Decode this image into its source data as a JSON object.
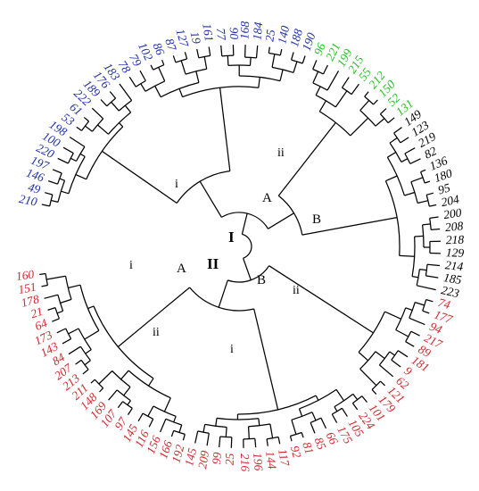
{
  "colors": {
    "red": "#d0282e",
    "blue": "#1f2fa8",
    "green": "#23c21f",
    "black": "#000000"
  },
  "clade_labels": {
    "major1": "I",
    "major2": "II",
    "a1": "A",
    "b1": "B",
    "a2": "A",
    "b2": "B",
    "i_a1": "i",
    "ii_a1": "ii",
    "i_a2": "i",
    "ii_a2": "ii",
    "i_b2": "i",
    "ii_b2": "ii"
  },
  "leaves": [
    {
      "label": "210",
      "color": "blue"
    },
    {
      "label": "49",
      "color": "blue"
    },
    {
      "label": "146",
      "color": "blue"
    },
    {
      "label": "197",
      "color": "blue"
    },
    {
      "label": "220",
      "color": "blue"
    },
    {
      "label": "100",
      "color": "blue"
    },
    {
      "label": "198",
      "color": "blue"
    },
    {
      "label": "53",
      "color": "blue"
    },
    {
      "label": "61",
      "color": "blue"
    },
    {
      "label": "222",
      "color": "blue"
    },
    {
      "label": "189",
      "color": "blue"
    },
    {
      "label": "176",
      "color": "blue"
    },
    {
      "label": "183",
      "color": "blue"
    },
    {
      "label": "78",
      "color": "blue"
    },
    {
      "label": "79",
      "color": "blue"
    },
    {
      "label": "102",
      "color": "blue"
    },
    {
      "label": "86",
      "color": "blue"
    },
    {
      "label": "87",
      "color": "blue"
    },
    {
      "label": "127",
      "color": "blue"
    },
    {
      "label": "19",
      "color": "blue"
    },
    {
      "label": "161",
      "color": "blue"
    },
    {
      "label": "77",
      "color": "blue"
    },
    {
      "label": "90",
      "color": "blue"
    },
    {
      "label": "168",
      "color": "blue"
    },
    {
      "label": "184",
      "color": "blue"
    },
    {
      "label": "25",
      "color": "blue"
    },
    {
      "label": "140",
      "color": "blue"
    },
    {
      "label": "188",
      "color": "blue"
    },
    {
      "label": "190",
      "color": "blue"
    },
    {
      "label": "96",
      "color": "green"
    },
    {
      "label": "221",
      "color": "green"
    },
    {
      "label": "199",
      "color": "green"
    },
    {
      "label": "215",
      "color": "green"
    },
    {
      "label": "55",
      "color": "green"
    },
    {
      "label": "212",
      "color": "green"
    },
    {
      "label": "150",
      "color": "green"
    },
    {
      "label": "52",
      "color": "green"
    },
    {
      "label": "131",
      "color": "green"
    },
    {
      "label": "149",
      "color": "black"
    },
    {
      "label": "123",
      "color": "black"
    },
    {
      "label": "219",
      "color": "black"
    },
    {
      "label": "82",
      "color": "black"
    },
    {
      "label": "136",
      "color": "black"
    },
    {
      "label": "180",
      "color": "black"
    },
    {
      "label": "95",
      "color": "black"
    },
    {
      "label": "204",
      "color": "black"
    },
    {
      "label": "200",
      "color": "black"
    },
    {
      "label": "208",
      "color": "black"
    },
    {
      "label": "218",
      "color": "black"
    },
    {
      "label": "129",
      "color": "black"
    },
    {
      "label": "214",
      "color": "black"
    },
    {
      "label": "185",
      "color": "black"
    },
    {
      "label": "223",
      "color": "black"
    },
    {
      "label": "74",
      "color": "red"
    },
    {
      "label": "177",
      "color": "red"
    },
    {
      "label": "94",
      "color": "red"
    },
    {
      "label": "217",
      "color": "red"
    },
    {
      "label": "89",
      "color": "red"
    },
    {
      "label": "181",
      "color": "red"
    },
    {
      "label": "9",
      "color": "red"
    },
    {
      "label": "62",
      "color": "red"
    },
    {
      "label": "121",
      "color": "red"
    },
    {
      "label": "179",
      "color": "red"
    },
    {
      "label": "101",
      "color": "red"
    },
    {
      "label": "224",
      "color": "red"
    },
    {
      "label": "105",
      "color": "red"
    },
    {
      "label": "175",
      "color": "red"
    },
    {
      "label": "66",
      "color": "red"
    },
    {
      "label": "85",
      "color": "red"
    },
    {
      "label": "81",
      "color": "red"
    },
    {
      "label": "92",
      "color": "red"
    },
    {
      "label": "117",
      "color": "red"
    },
    {
      "label": "144",
      "color": "red"
    },
    {
      "label": "196",
      "color": "red"
    },
    {
      "label": "216",
      "color": "red"
    },
    {
      "label": "25",
      "color": "red"
    },
    {
      "label": "99",
      "color": "red"
    },
    {
      "label": "209",
      "color": "red"
    },
    {
      "label": "145",
      "color": "red"
    },
    {
      "label": "192",
      "color": "red"
    },
    {
      "label": "166",
      "color": "red"
    },
    {
      "label": "156",
      "color": "red"
    },
    {
      "label": "116",
      "color": "red"
    },
    {
      "label": "145",
      "color": "red"
    },
    {
      "label": "97",
      "color": "red"
    },
    {
      "label": "107",
      "color": "red"
    },
    {
      "label": "169",
      "color": "red"
    },
    {
      "label": "148",
      "color": "red"
    },
    {
      "label": "211",
      "color": "red"
    },
    {
      "label": "213",
      "color": "red"
    },
    {
      "label": "207",
      "color": "red"
    },
    {
      "label": "84",
      "color": "red"
    },
    {
      "label": "143",
      "color": "red"
    },
    {
      "label": "173",
      "color": "red"
    },
    {
      "label": "64",
      "color": "red"
    },
    {
      "label": "21",
      "color": "red"
    },
    {
      "label": "178",
      "color": "red"
    },
    {
      "label": "151",
      "color": "red"
    },
    {
      "label": "160",
      "color": "red"
    }
  ]
}
